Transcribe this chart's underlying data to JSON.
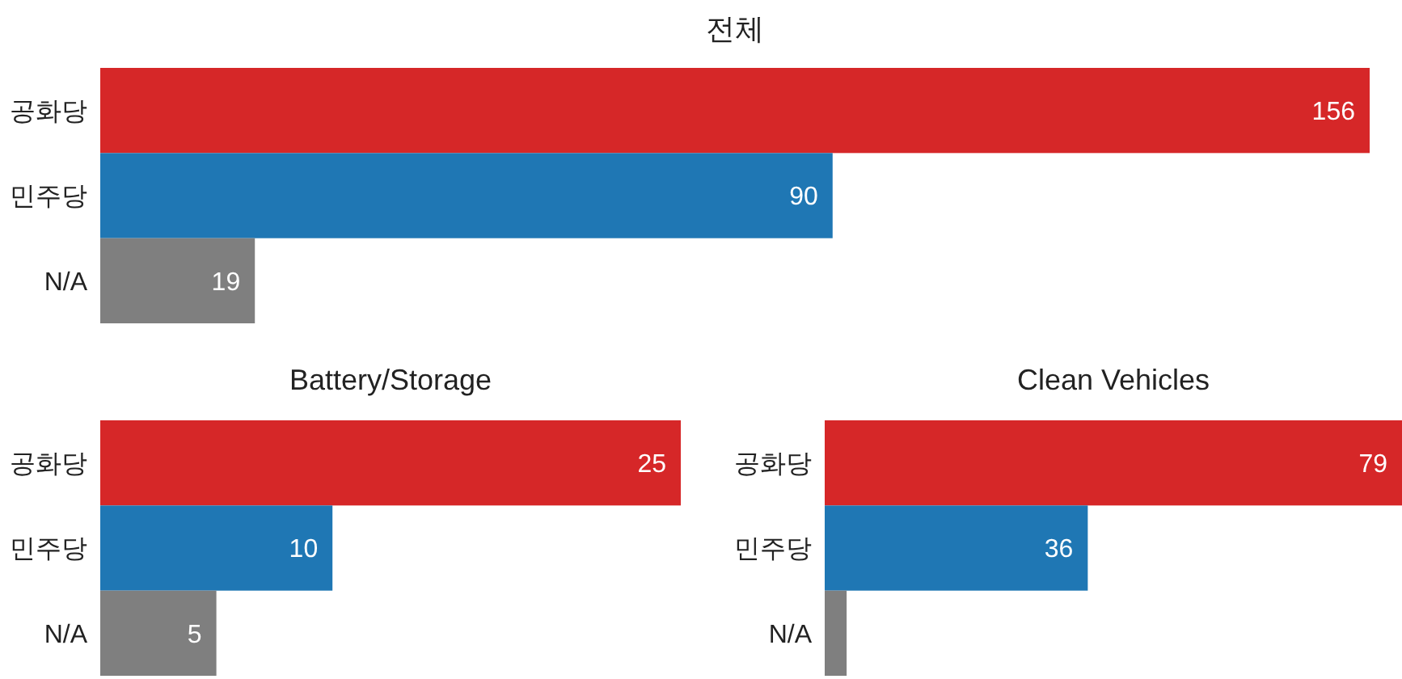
{
  "chart_data": [
    {
      "type": "bar",
      "orientation": "horizontal",
      "title": "전체",
      "categories": [
        "공화당",
        "민주당",
        "N/A"
      ],
      "values": [
        156,
        90,
        19
      ],
      "colors": [
        "#d62728",
        "#1f77b4",
        "#7f7f7f"
      ],
      "data_labels": true
    },
    {
      "type": "bar",
      "orientation": "horizontal",
      "title": "Battery/Storage",
      "categories": [
        "공화당",
        "민주당",
        "N/A"
      ],
      "values": [
        25,
        10,
        5
      ],
      "colors": [
        "#d62728",
        "#1f77b4",
        "#7f7f7f"
      ],
      "data_labels": true
    },
    {
      "type": "bar",
      "orientation": "horizontal",
      "title": "Clean Vehicles",
      "categories": [
        "공화당",
        "민주당",
        "N/A"
      ],
      "values": [
        79,
        36,
        3
      ],
      "colors": [
        "#d62728",
        "#1f77b4",
        "#7f7f7f"
      ],
      "value_labels": [
        "79",
        "36",
        null
      ]
    }
  ]
}
